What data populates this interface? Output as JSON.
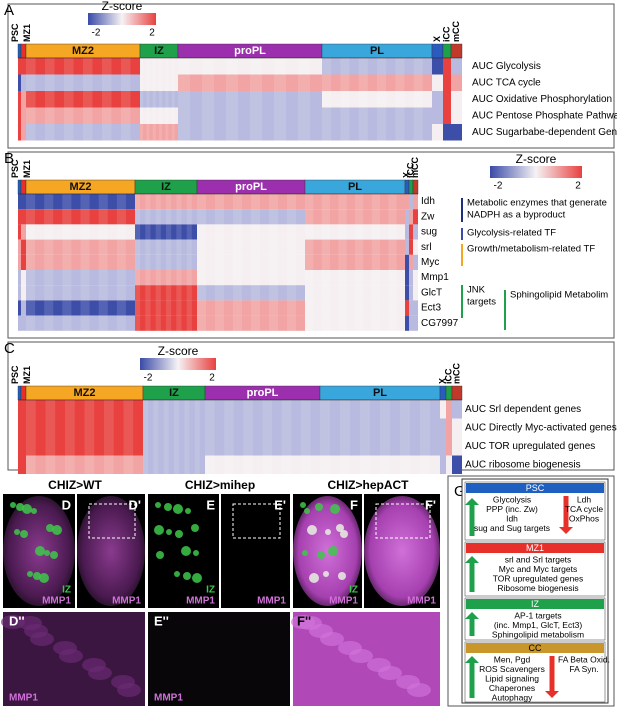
{
  "panel_a": {
    "label": "A",
    "colorbar": {
      "title": "Z-score",
      "min_label": "-2",
      "max_label": "2"
    },
    "clusters": [
      "PSC",
      "MZ1",
      "MZ2",
      "IZ",
      "proPL",
      "PL",
      "X",
      "iCC",
      "mCC"
    ],
    "rows": [
      "AUC Glycolysis",
      "AUC TCA cycle",
      "AUC Oxidative Phosphorylation",
      "AUC Pentose Phosphate Pathway",
      "AUC Sugarbabe-dependent Genes"
    ]
  },
  "panel_b": {
    "label": "B",
    "colorbar": {
      "title": "Z-score",
      "min_label": "-2",
      "max_label": "2"
    },
    "clusters": [
      "PSC",
      "MZ1",
      "MZ2",
      "IZ",
      "proPL",
      "PL",
      "X",
      "iCC",
      "mCC"
    ],
    "rows": [
      "Idh",
      "Zw",
      "sug",
      "srl",
      "Myc",
      "Mmp1",
      "GlcT",
      "Ect3",
      "CG7997"
    ],
    "annotations": [
      [
        "Metabolic enzymes that generate",
        "NADPH as a byproduct"
      ],
      [
        "Glycolysis-related TF"
      ],
      [
        "Growth/metabolism-related TF"
      ],
      [
        "JNK",
        "targets"
      ],
      [
        "Sphingolipid Metabolim"
      ]
    ]
  },
  "panel_c": {
    "label": "C",
    "colorbar": {
      "title": "Z-score",
      "min_label": "-2",
      "max_label": "2"
    },
    "clusters": [
      "PSC",
      "MZ1",
      "MZ2",
      "IZ",
      "proPL",
      "PL",
      "X",
      "iCC",
      "mCC"
    ],
    "rows": [
      "AUC Srl dependent genes",
      "AUC Directly Myc-activated genes",
      "AUC TOR upregulated genes",
      "AUC ribosome biogenesis"
    ]
  },
  "images": {
    "titles": [
      "CHIZ>WT",
      "CHIZ>mihep",
      "CHIZ>hepACT"
    ],
    "top": [
      {
        "label": "D",
        "marker": "IZ",
        "stain": "MMP1"
      },
      {
        "label": "D'",
        "stain": "MMP1"
      },
      {
        "label": "E",
        "marker": "IZ",
        "stain": "MMP1"
      },
      {
        "label": "E'",
        "stain": "MMP1"
      },
      {
        "label": "F",
        "marker": "IZ",
        "stain": "MMP1"
      },
      {
        "label": "F'",
        "stain": "MMP1"
      }
    ],
    "bottom": [
      {
        "label": "D''",
        "stain": "MMP1"
      },
      {
        "label": "E''",
        "stain": "MMP1"
      },
      {
        "label": "F''"
      }
    ]
  },
  "panel_g": {
    "label": "G",
    "sections": [
      {
        "header": "PSC",
        "up": [
          "Glycolysis",
          "PPP (inc. Zw)",
          "Idh",
          "sug and Sug targets"
        ],
        "down": [
          "Ldh",
          "TCA cycle",
          "OxPhos"
        ]
      },
      {
        "header": "MZ1",
        "up": [
          "srl and Srl targets",
          "Myc and Myc targets",
          "TOR upregulated genes",
          "Ribosome biogenesis"
        ]
      },
      {
        "header": "IZ",
        "up": [
          "AP-1 targets",
          "(inc. Mmp1, GlcT, Ect3)",
          "Sphingolipid metabolism"
        ]
      },
      {
        "header": "CC",
        "up": [
          "Men, Pgd",
          "ROS Scavengers",
          "Lipid signaling",
          "Chaperones",
          "Autophagy"
        ],
        "down": [
          "FA Beta Oxid.",
          "FA Syn."
        ]
      }
    ]
  }
}
